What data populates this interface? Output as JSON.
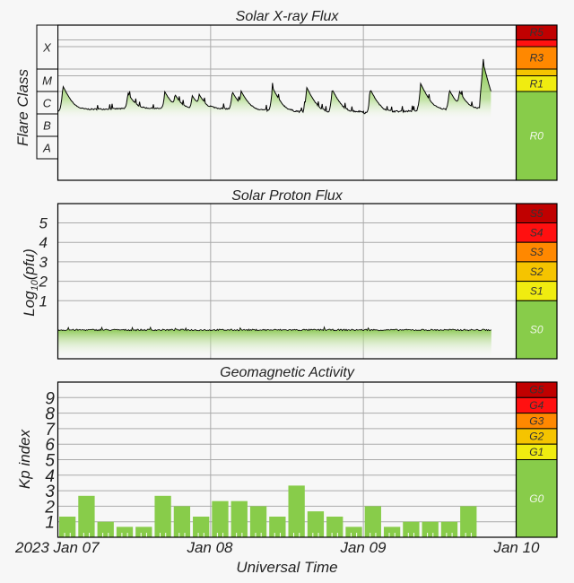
{
  "chart_data": [
    {
      "type": "area",
      "title": "Solar X-ray Flux",
      "ylabel": "Flare Class",
      "yscale": "log",
      "ylim_w_m2": [
        1e-09,
        0.01
      ],
      "flare_classes": [
        {
          "label": "X",
          "from": 0.0001,
          "to": 0.01
        },
        {
          "label": "M",
          "from": 1e-05,
          "to": 0.0001
        },
        {
          "label": "C",
          "from": 1e-06,
          "to": 1e-05
        },
        {
          "label": "B",
          "from": 1e-07,
          "to": 1e-06
        },
        {
          "label": "A",
          "from": 1e-08,
          "to": 1e-07
        }
      ],
      "x_range_hours_since_2023_jan_07_00UT": [
        0,
        72
      ],
      "data_end_hour": 68.1,
      "baseline_flux": 1.4e-06,
      "peaks": [
        {
          "hour": 0.8,
          "flux": 1.6e-05
        },
        {
          "hour": 11.0,
          "flux": 6.9e-06
        },
        {
          "hour": 16.8,
          "flux": 8e-06
        },
        {
          "hour": 18.4,
          "flux": 4.8e-06
        },
        {
          "hour": 21.1,
          "flux": 4.8e-06
        },
        {
          "hour": 22.2,
          "flux": 4.8e-06
        },
        {
          "hour": 27.4,
          "flux": 8e-06
        },
        {
          "hour": 28.8,
          "flux": 7.6e-06
        },
        {
          "hour": 33.7,
          "flux": 1.4e-05
        },
        {
          "hour": 39.1,
          "flux": 1.4e-05
        },
        {
          "hour": 43.1,
          "flux": 1.1e-05
        },
        {
          "hour": 49.1,
          "flux": 1.1e-05
        },
        {
          "hour": 57.0,
          "flux": 2.1e-05
        },
        {
          "hour": 61.5,
          "flux": 1e-05
        },
        {
          "hour": 63.1,
          "flux": 7.6e-06
        },
        {
          "hour": 66.8,
          "flux": 0.00019
        }
      ],
      "scale": [
        {
          "label": "R5",
          "from": 0.002,
          "to": 0.01,
          "color": "#c00000"
        },
        {
          "label": "",
          "from": 0.001,
          "to": 0.002,
          "color": "#ff1010"
        },
        {
          "label": "R3",
          "from": 0.0001,
          "to": 0.001,
          "color": "#ff8800"
        },
        {
          "label": "",
          "from": 5e-05,
          "to": 0.0001,
          "color": "#f5c400"
        },
        {
          "label": "R1",
          "from": 1e-05,
          "to": 5e-05,
          "color": "#f0ec10"
        },
        {
          "label": "R0",
          "from": 1e-09,
          "to": 1e-05,
          "color": "#88cc4a"
        }
      ],
      "threshold_lines": [
        1e-05,
        5e-05,
        0.0001,
        0.001,
        0.002
      ]
    },
    {
      "type": "area",
      "title": "Solar Proton Flux",
      "ylabel": "Log10(pfu)",
      "ylabel_main": "Log",
      "ylabel_sub": "10",
      "ylabel_tail": "(pfu)",
      "ylim": [
        -2,
        6
      ],
      "yticks": [
        "1",
        "2",
        "3",
        "4",
        "5"
      ],
      "data_end_hour": 68.1,
      "level_log_pfu": -0.5,
      "scale": [
        {
          "label": "S5",
          "from": 5,
          "to": 6,
          "color": "#c00000"
        },
        {
          "label": "S4",
          "from": 4,
          "to": 5,
          "color": "#ff1010"
        },
        {
          "label": "S3",
          "from": 3,
          "to": 4,
          "color": "#ff8800"
        },
        {
          "label": "S2",
          "from": 2,
          "to": 3,
          "color": "#f5c400"
        },
        {
          "label": "S1",
          "from": 1,
          "to": 2,
          "color": "#f0ec10"
        },
        {
          "label": "S0",
          "from": -2,
          "to": 1,
          "color": "#88cc4a"
        }
      ]
    },
    {
      "type": "bar",
      "title": "Geomagnetic Activity",
      "ylabel": "Kp index",
      "ylim": [
        0,
        10
      ],
      "yticks": [
        "1",
        "2",
        "3",
        "4",
        "5",
        "6",
        "7",
        "8",
        "9"
      ],
      "bin_hours": 3,
      "values": [
        1.33,
        2.67,
        1,
        0.67,
        0.67,
        2.67,
        2,
        1.33,
        2.33,
        2.33,
        2,
        1.33,
        3.33,
        1.67,
        1.33,
        0.67,
        2,
        0.67,
        1,
        1,
        1,
        2
      ],
      "bar_color": "#88cc4a",
      "scale": [
        {
          "label": "G5",
          "from": 9,
          "to": 10,
          "color": "#c00000"
        },
        {
          "label": "G4",
          "from": 8,
          "to": 9,
          "color": "#ff1010"
        },
        {
          "label": "G3",
          "from": 7,
          "to": 8,
          "color": "#ff8800"
        },
        {
          "label": "G2",
          "from": 6,
          "to": 7,
          "color": "#f5c400"
        },
        {
          "label": "G1",
          "from": 5,
          "to": 6,
          "color": "#f0ec10"
        },
        {
          "label": "G0",
          "from": 0,
          "to": 5,
          "color": "#88cc4a"
        }
      ]
    }
  ],
  "xaxis": {
    "tick_labels": [
      "2023 Jan 07",
      "Jan 08",
      "Jan 09",
      "Jan 10"
    ],
    "label": "Universal Time"
  }
}
